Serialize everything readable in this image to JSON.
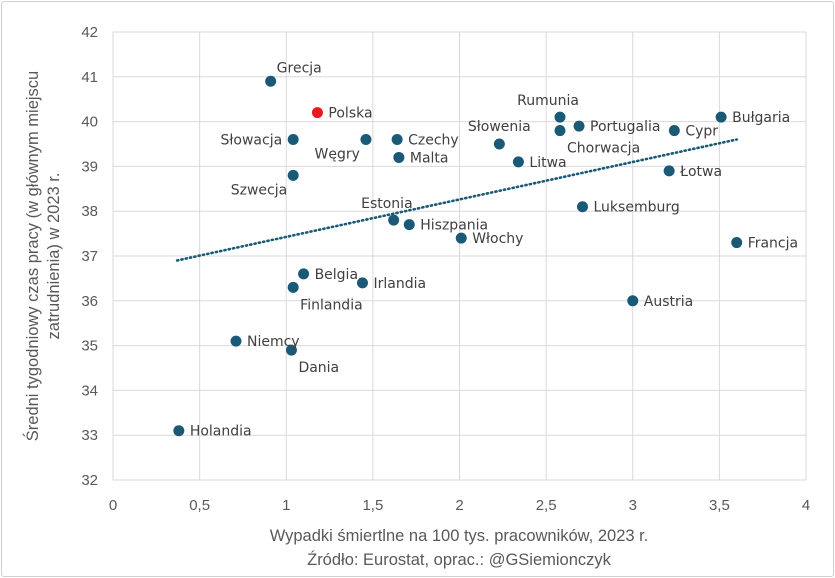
{
  "chart_data": {
    "type": "scatter",
    "title": "",
    "xlabel": "Wypadki śmiertlne na 100 tys. pracowników, 2023 r.",
    "ylabel_lines": [
      "Średni tygodniowy czas pracy (w głównym miejscu",
      "zatrudnienia) w 2023 r."
    ],
    "source": "Źródło: Eurostat, oprac.: @GSiemionczyk",
    "xlim": [
      0,
      4
    ],
    "ylim": [
      32,
      42
    ],
    "x_ticks": [
      "0",
      "0,5",
      "1",
      "1,5",
      "2",
      "2,5",
      "3",
      "3,5",
      "4"
    ],
    "y_ticks": [
      "32",
      "33",
      "34",
      "35",
      "36",
      "37",
      "38",
      "39",
      "40",
      "41",
      "42"
    ],
    "grid": true,
    "point_color": "#1a5a76",
    "highlight_color": "#e8191f",
    "trendline": {
      "style": "dotted",
      "color": "#1a5a76",
      "x": [
        0.37,
        3.6
      ],
      "y": [
        36.9,
        39.6
      ]
    },
    "points": [
      {
        "label": "Grecja",
        "x": 0.91,
        "y": 40.9,
        "pos": "ar"
      },
      {
        "label": "Polska",
        "x": 1.18,
        "y": 40.2,
        "pos": "r",
        "highlight": true
      },
      {
        "label": "Słowacja",
        "x": 1.04,
        "y": 39.6,
        "pos": "l"
      },
      {
        "label": "Węgry",
        "x": 1.46,
        "y": 39.6,
        "pos": "bl"
      },
      {
        "label": "Czechy",
        "x": 1.64,
        "y": 39.6,
        "pos": "r"
      },
      {
        "label": "Malta",
        "x": 1.65,
        "y": 39.2,
        "pos": "r"
      },
      {
        "label": "Szwecja",
        "x": 1.04,
        "y": 38.8,
        "pos": "bl"
      },
      {
        "label": "Estonia",
        "x": 1.62,
        "y": 37.8,
        "pos": "al"
      },
      {
        "label": "Hiszpania",
        "x": 1.71,
        "y": 37.7,
        "pos": "r"
      },
      {
        "label": "Włochy",
        "x": 2.01,
        "y": 37.4,
        "pos": "r"
      },
      {
        "label": "Słowenia",
        "x": 2.23,
        "y": 39.5,
        "pos": "a"
      },
      {
        "label": "Litwa",
        "x": 2.34,
        "y": 39.1,
        "pos": "r"
      },
      {
        "label": "Rumunia",
        "x": 2.58,
        "y": 40.1,
        "pos": "al"
      },
      {
        "label": "Chorwacja",
        "x": 2.58,
        "y": 39.8,
        "pos": "br"
      },
      {
        "label": "Portugalia",
        "x": 2.69,
        "y": 39.9,
        "pos": "r"
      },
      {
        "label": "Cypr",
        "x": 3.24,
        "y": 39.8,
        "pos": "r"
      },
      {
        "label": "Bułgaria",
        "x": 3.51,
        "y": 40.1,
        "pos": "r"
      },
      {
        "label": "Łotwa",
        "x": 3.21,
        "y": 38.9,
        "pos": "r"
      },
      {
        "label": "Luksemburg",
        "x": 2.71,
        "y": 38.1,
        "pos": "r"
      },
      {
        "label": "Francja",
        "x": 3.6,
        "y": 37.3,
        "pos": "r"
      },
      {
        "label": "Belgia",
        "x": 1.1,
        "y": 36.6,
        "pos": "r"
      },
      {
        "label": "Irlandia",
        "x": 1.44,
        "y": 36.4,
        "pos": "r"
      },
      {
        "label": "Finlandia",
        "x": 1.04,
        "y": 36.3,
        "pos": "br"
      },
      {
        "label": "Austria",
        "x": 3.0,
        "y": 36.0,
        "pos": "r"
      },
      {
        "label": "Niemcy",
        "x": 0.71,
        "y": 35.1,
        "pos": "r"
      },
      {
        "label": "Dania",
        "x": 1.03,
        "y": 34.9,
        "pos": "br"
      },
      {
        "label": "Holandia",
        "x": 0.38,
        "y": 33.1,
        "pos": "r"
      }
    ]
  }
}
